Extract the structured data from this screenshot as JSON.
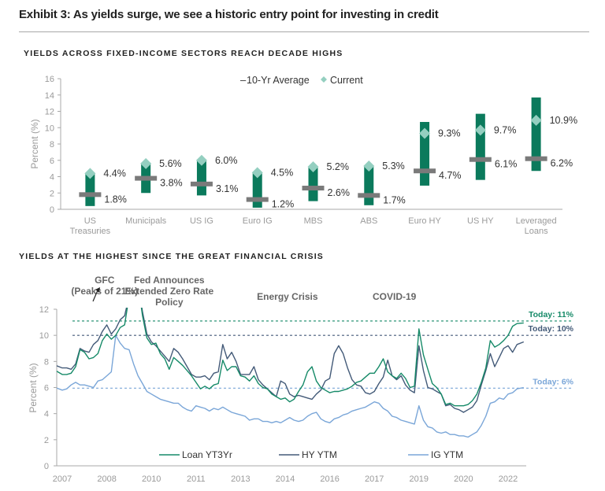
{
  "header": {
    "title": "Exhibit 3: As yields surge, we see a historic entry point for investing in credit"
  },
  "colors": {
    "bar": "#0b7a5c",
    "current": "#94cfc0",
    "average": "#7a7a7a",
    "loan": "#168a68",
    "hy": "#435a78",
    "ig": "#7aa6d8",
    "axis": "#a8a8a8"
  },
  "chart_data": [
    {
      "type": "bar",
      "subtype": "range-with-markers",
      "title": "YIELDS ACROSS FIXED-INCOME SECTORS REACH DECADE HIGHS",
      "xlabel": "",
      "ylabel": "Percent (%)",
      "ylim": [
        0,
        16
      ],
      "yticks": [
        0,
        2,
        4,
        6,
        8,
        10,
        12,
        14,
        16
      ],
      "legend": {
        "position": "top-right",
        "entries": [
          "10-Yr Average",
          "Current"
        ],
        "average_prefix": "–"
      },
      "categories": [
        [
          "US",
          "Treasuries"
        ],
        [
          "Municipals"
        ],
        [
          "US IG"
        ],
        [
          "Euro IG"
        ],
        [
          "MBS"
        ],
        [
          "ABS"
        ],
        [
          "Euro HY"
        ],
        [
          "US HY"
        ],
        [
          "Leveraged",
          "Loans"
        ]
      ],
      "range_low": [
        0.4,
        2.0,
        1.7,
        0.2,
        1.0,
        0.5,
        2.9,
        3.6,
        4.7
      ],
      "range_high": [
        4.4,
        5.6,
        6.0,
        4.5,
        5.2,
        5.3,
        10.7,
        11.7,
        13.7
      ],
      "current": [
        4.4,
        5.6,
        6.0,
        4.5,
        5.2,
        5.3,
        9.3,
        9.7,
        10.9
      ],
      "average": [
        1.8,
        3.8,
        3.1,
        1.2,
        2.6,
        1.7,
        4.7,
        6.1,
        6.2
      ],
      "current_labels": [
        "4.4%",
        "5.6%",
        "6.0%",
        "4.5%",
        "5.2%",
        "5.3%",
        "9.3%",
        "9.7%",
        "10.9%"
      ],
      "average_labels": [
        "1.8%",
        "3.8%",
        "3.1%",
        "1.2%",
        "2.6%",
        "1.7%",
        "4.7%",
        "6.1%",
        "6.2%"
      ]
    },
    {
      "type": "line",
      "title": "YIELDS AT THE HIGHEST SINCE THE GREAT FINANCIAL CRISIS",
      "xlabel": "",
      "ylabel": "Percent (%)",
      "ylim": [
        0,
        12
      ],
      "yticks": [
        0,
        2,
        4,
        6,
        8,
        10,
        12
      ],
      "xticks": [
        "2007",
        "2008",
        "2010",
        "2011",
        "2013",
        "2014",
        "2016",
        "2017",
        "2019",
        "2020",
        "2022"
      ],
      "x_range_ticks": [
        -0.15,
        10.35
      ],
      "legend": {
        "position": "bottom",
        "entries": [
          "Loan YT3Yr",
          "HY YTM",
          "IG YTM"
        ]
      },
      "annotations": [
        {
          "text": [
            "GFC",
            "(Peaks of 21%)"
          ],
          "at_tick": 0.95
        },
        {
          "text": [
            "Fed Announces",
            "Extended Zero Rate",
            "Policy"
          ],
          "at_tick": 2.4
        },
        {
          "text": [
            "Energy Crisis"
          ],
          "at_tick": 5.05
        },
        {
          "text": [
            "COVID-19"
          ],
          "at_tick": 7.45
        }
      ],
      "reference_lines": [
        {
          "label": "Today: 11%",
          "value": 11.1,
          "series": "loan"
        },
        {
          "label": "Today: 10%",
          "value": 10.0,
          "series": "hy"
        },
        {
          "label": "Today: 6%",
          "value": 5.95,
          "series": "ig"
        }
      ],
      "x_tick_positions_of_points_note": "x values below are in tick-index units (0 = 2007 tick, 10 = 2022 tick)",
      "x": [
        -0.15,
        0,
        0.1,
        0.2,
        0.3,
        0.4,
        0.5,
        0.6,
        0.7,
        0.8,
        0.9,
        1.0,
        1.1,
        1.2,
        1.3,
        1.4,
        1.5,
        1.6,
        1.7,
        1.8,
        1.9,
        2.0,
        2.1,
        2.2,
        2.3,
        2.4,
        2.5,
        2.6,
        2.7,
        2.8,
        2.9,
        3.0,
        3.1,
        3.2,
        3.3,
        3.4,
        3.5,
        3.6,
        3.7,
        3.8,
        3.9,
        4.0,
        4.1,
        4.2,
        4.3,
        4.4,
        4.5,
        4.6,
        4.7,
        4.8,
        4.9,
        5.0,
        5.1,
        5.2,
        5.3,
        5.4,
        5.5,
        5.6,
        5.7,
        5.8,
        5.9,
        6.0,
        6.1,
        6.2,
        6.3,
        6.4,
        6.5,
        6.6,
        6.7,
        6.8,
        6.9,
        7.0,
        7.1,
        7.2,
        7.3,
        7.4,
        7.5,
        7.6,
        7.7,
        7.8,
        7.9,
        8.0,
        8.1,
        8.2,
        8.3,
        8.4,
        8.5,
        8.6,
        8.7,
        8.8,
        8.9,
        9.0,
        9.1,
        9.2,
        9.3,
        9.4,
        9.5,
        9.6,
        9.7,
        9.8,
        9.9,
        10.0,
        10.1,
        10.2,
        10.35
      ],
      "series": [
        {
          "name": "Loan YT3Yr",
          "key": "loan",
          "values": [
            7.3,
            7.0,
            7.0,
            7.1,
            7.6,
            8.9,
            8.7,
            8.2,
            8.3,
            8.6,
            9.6,
            10.1,
            9.7,
            10.0,
            10.6,
            10.8,
            13,
            21,
            14,
            11.5,
            9.8,
            9.3,
            9.4,
            8.6,
            8.2,
            7.4,
            8.3,
            8.0,
            7.7,
            7.3,
            6.9,
            6.4,
            5.9,
            6.1,
            5.9,
            6.2,
            6.3,
            8.1,
            7.3,
            7.6,
            7.6,
            6.9,
            6.8,
            6.5,
            6.9,
            6.3,
            6.0,
            5.9,
            5.5,
            5.3,
            5.1,
            5.2,
            4.9,
            5.1,
            5.7,
            6.2,
            7.2,
            7.6,
            6.5,
            6.0,
            5.8,
            5.6,
            5.7,
            5.7,
            5.8,
            5.9,
            6.1,
            6.4,
            6.5,
            6.8,
            7.1,
            7.1,
            7.6,
            8.2,
            7.2,
            6.9,
            6.7,
            7.1,
            6.7,
            6.0,
            6.1,
            10.5,
            8.5,
            7.4,
            6.3,
            6.0,
            5.5,
            4.7,
            4.8,
            4.6,
            4.6,
            4.6,
            4.7,
            5.0,
            5.5,
            6.4,
            7.5,
            9.6,
            9.1,
            9.3,
            9.6,
            10.0,
            10.7,
            10.9,
            10.95
          ],
          "stroke_color": "#168a68"
        },
        {
          "name": "HY YTM",
          "key": "hy",
          "values": [
            7.7,
            7.5,
            7.5,
            7.4,
            7.8,
            9.0,
            8.8,
            8.7,
            9.3,
            9.6,
            10.3,
            10.8,
            10.1,
            10.5,
            11.2,
            11.5,
            13,
            21,
            14,
            11.8,
            10.1,
            9.5,
            9.2,
            8.8,
            8.4,
            8.0,
            9.0,
            8.7,
            8.2,
            7.6,
            7.0,
            6.8,
            6.8,
            6.9,
            6.6,
            7.1,
            7.2,
            9.3,
            8.2,
            8.7,
            8.0,
            7.0,
            7.0,
            7.0,
            7.6,
            6.6,
            6.2,
            5.9,
            5.6,
            5.3,
            6.5,
            6.3,
            5.5,
            5.3,
            5.4,
            5.3,
            5.2,
            5.1,
            5.5,
            5.8,
            6.5,
            6.7,
            8.6,
            9.2,
            8.6,
            7.5,
            6.6,
            6.2,
            6.1,
            5.6,
            5.5,
            5.7,
            6.3,
            6.8,
            8.1,
            6.9,
            6.6,
            6.9,
            6.2,
            5.8,
            5.6,
            9.2,
            7.3,
            6.0,
            5.9,
            5.7,
            5.5,
            4.6,
            4.7,
            4.4,
            4.3,
            4.1,
            4.3,
            4.5,
            5.0,
            6.2,
            7.3,
            8.6,
            7.6,
            8.3,
            9.0,
            9.2,
            8.7,
            9.3,
            9.5
          ],
          "stroke_color": "#435a78"
        },
        {
          "name": "IG YTM",
          "key": "ig",
          "values": [
            6.0,
            5.8,
            5.9,
            6.2,
            6.4,
            6.2,
            6.2,
            6.1,
            6.0,
            6.5,
            6.6,
            6.9,
            7.2,
            10.0,
            9.4,
            9.0,
            8.9,
            7.8,
            6.9,
            6.3,
            5.7,
            5.5,
            5.3,
            5.1,
            5.0,
            4.9,
            4.8,
            4.8,
            4.5,
            4.3,
            4.2,
            4.6,
            4.5,
            4.4,
            4.2,
            4.4,
            4.3,
            4.5,
            4.3,
            4.1,
            4.0,
            3.9,
            3.8,
            3.5,
            3.6,
            3.6,
            3.4,
            3.4,
            3.3,
            3.4,
            3.3,
            3.5,
            3.7,
            3.5,
            3.4,
            3.5,
            3.8,
            4.0,
            4.1,
            3.6,
            3.4,
            3.3,
            3.6,
            3.7,
            3.9,
            4.0,
            4.2,
            4.3,
            4.4,
            4.5,
            4.7,
            4.9,
            4.8,
            4.4,
            4.2,
            3.8,
            3.7,
            3.5,
            3.4,
            3.3,
            3.2,
            4.6,
            3.5,
            3.0,
            2.9,
            2.6,
            2.5,
            2.6,
            2.4,
            2.4,
            2.3,
            2.3,
            2.2,
            2.4,
            2.6,
            3.1,
            3.8,
            4.8,
            4.9,
            5.2,
            5.1,
            5.5,
            5.6,
            5.9,
            6.0
          ],
          "stroke_color": "#7aa6d8"
        }
      ]
    }
  ]
}
